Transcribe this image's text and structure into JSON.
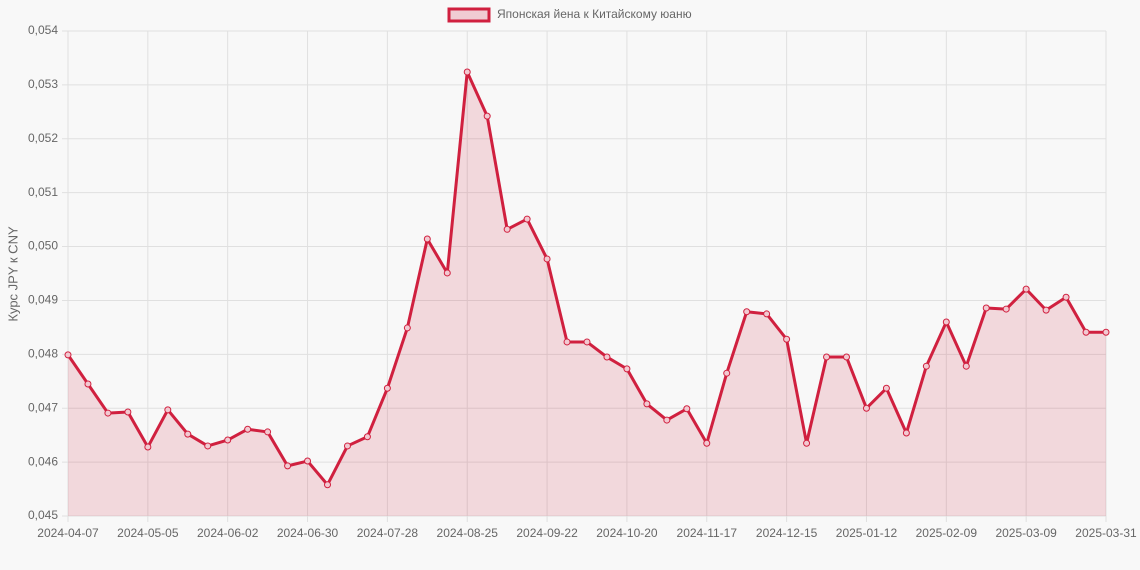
{
  "chart_data": {
    "type": "line",
    "y_label": "Курс JPY к CNY",
    "categories": [
      "2024-04-07",
      null,
      null,
      null,
      "2024-05-05",
      null,
      null,
      null,
      "2024-06-02",
      null,
      null,
      null,
      "2024-06-30",
      null,
      null,
      null,
      "2024-07-28",
      null,
      null,
      null,
      "2024-08-25",
      null,
      null,
      null,
      "2024-09-22",
      null,
      null,
      null,
      "2024-10-20",
      null,
      null,
      null,
      "2024-11-17",
      null,
      null,
      null,
      "2024-12-15",
      null,
      null,
      null,
      "2025-01-12",
      null,
      null,
      null,
      "2025-02-09",
      null,
      null,
      null,
      "2025-03-09",
      null,
      null,
      null,
      "2025-03-31"
    ],
    "series": [
      {
        "name": "Японская йена к Китайскому юаню",
        "color": "#d0203f",
        "values": [
          0.04799,
          0.04745,
          0.04691,
          0.04693,
          0.04628,
          0.04697,
          0.04652,
          0.0463,
          0.04641,
          0.04661,
          0.04656,
          0.04593,
          0.04602,
          0.04558,
          0.0463,
          0.04647,
          0.04737,
          0.04849,
          0.05014,
          0.04951,
          0.05324,
          0.05242,
          0.05032,
          0.05051,
          0.04977,
          0.04823,
          0.04823,
          0.04795,
          0.04773,
          0.04708,
          0.04678,
          0.04699,
          0.04635,
          0.04765,
          0.04879,
          0.04875,
          0.04828,
          0.04635,
          0.04795,
          0.04795,
          0.047,
          0.04737,
          0.04654,
          0.04778,
          0.0486,
          0.04778,
          0.04886,
          0.04884,
          0.04921,
          0.04882,
          0.04906,
          0.04841,
          0.04841
        ]
      }
    ],
    "ylim": [
      0.045,
      0.054
    ],
    "yticks": [
      {
        "value": 0.045,
        "label": "0,045"
      },
      {
        "value": 0.046,
        "label": "0,046"
      },
      {
        "value": 0.047,
        "label": "0,047"
      },
      {
        "value": 0.048,
        "label": "0,048"
      },
      {
        "value": 0.049,
        "label": "0,049"
      },
      {
        "value": 0.05,
        "label": "0,050"
      },
      {
        "value": 0.051,
        "label": "0,051"
      },
      {
        "value": 0.052,
        "label": "0,052"
      },
      {
        "value": 0.053,
        "label": "0,053"
      },
      {
        "value": 0.054,
        "label": "0,054"
      }
    ],
    "grid": true,
    "fill": true,
    "legend": "top"
  }
}
